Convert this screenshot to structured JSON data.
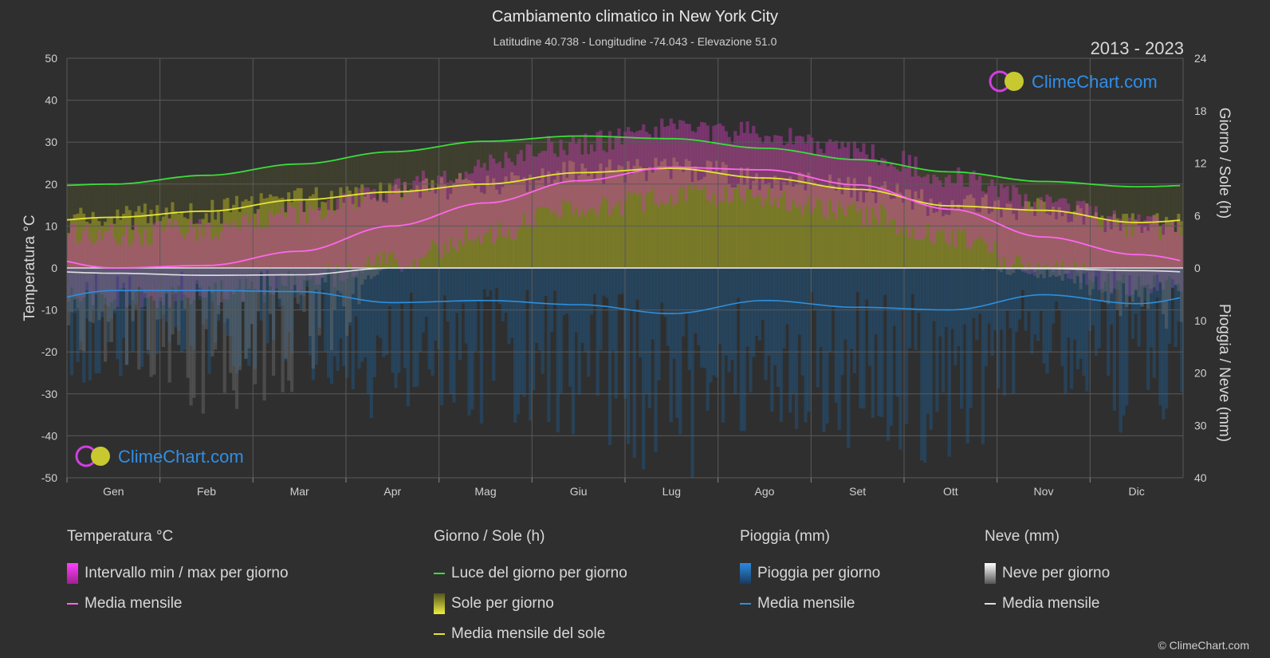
{
  "header": {
    "title": "Cambiamento climatico in New York City",
    "subtitle": "Latitudine 40.738 - Longitudine -74.043 - Elevazione 51.0",
    "years": "2013 - 2023",
    "watermark": "ClimeChart.com",
    "copyright": "© ClimeChart.com"
  },
  "colors": {
    "background": "#2f2f2f",
    "daylight": "#3cdc3c",
    "sun_mean": "#e6e632",
    "sun_fill": "#8c8c28",
    "temp_mean": "#ff66ee",
    "temp_range": "#c83cb4",
    "rain_mean": "#2e8fdc",
    "rain_bar": "#1e5a8c",
    "snow_mean": "#e0e0e0",
    "snow_bar": "#6e6e6e",
    "watermark_text": "#2f8fe8"
  },
  "chart_data": {
    "type": "line",
    "categories": [
      "Gen",
      "Feb",
      "Mar",
      "Apr",
      "Mag",
      "Giu",
      "Lug",
      "Ago",
      "Set",
      "Ott",
      "Nov",
      "Dic"
    ],
    "left_axis": {
      "label": "Temperatura °C",
      "range": [
        -50,
        50
      ],
      "ticks": [
        50,
        40,
        30,
        20,
        10,
        0,
        -10,
        -20,
        -30,
        -40,
        -50
      ]
    },
    "right_axis_top": {
      "label": "Giorno / Sole (h)",
      "range": [
        0,
        24
      ],
      "ticks": [
        24,
        18,
        12,
        6,
        0
      ]
    },
    "right_axis_bottom": {
      "label": "Pioggia / Neve (mm)",
      "range": [
        0,
        40
      ],
      "ticks": [
        0,
        10,
        20,
        30,
        40
      ]
    },
    "series": [
      {
        "name": "Luce del giorno per giorno",
        "axis": "hours",
        "values": [
          9.6,
          10.6,
          11.9,
          13.3,
          14.5,
          15.1,
          14.8,
          13.7,
          12.4,
          11.0,
          9.9,
          9.3
        ]
      },
      {
        "name": "Media mensile del sole",
        "axis": "hours",
        "values": [
          5.8,
          6.5,
          7.8,
          8.7,
          9.6,
          10.9,
          11.4,
          10.3,
          9.0,
          7.1,
          6.6,
          5.2
        ]
      },
      {
        "name": "Media mensile",
        "group": "temperature",
        "axis": "temp",
        "values": [
          0.0,
          0.6,
          4.0,
          10.0,
          15.5,
          20.8,
          24.0,
          23.4,
          19.8,
          14.0,
          7.4,
          3.2
        ]
      },
      {
        "name": "Media mensile",
        "group": "rain",
        "axis": "precip",
        "values": [
          4.3,
          4.3,
          4.5,
          6.6,
          6.2,
          7.0,
          8.7,
          6.2,
          7.5,
          8.0,
          5.1,
          6.8
        ]
      },
      {
        "name": "Media mensile",
        "group": "snow",
        "axis": "precip",
        "values": [
          1.0,
          1.4,
          1.3,
          0.0,
          0.0,
          0.0,
          0.0,
          0.0,
          0.0,
          0.0,
          0.1,
          0.5
        ]
      }
    ],
    "temp_range_approx": {
      "min": [
        -4,
        -3,
        0,
        5,
        11,
        17,
        20,
        20,
        16,
        10,
        3,
        -1
      ],
      "max": [
        5,
        6,
        10,
        16,
        22,
        27,
        30,
        29,
        25,
        19,
        12,
        7
      ]
    },
    "grid": true
  },
  "legend": {
    "groups": [
      {
        "title": "Temperatura °C",
        "items": [
          {
            "label": "Intervallo min / max per giorno",
            "kind": "box",
            "color": "#e030d0"
          },
          {
            "label": "Media mensile",
            "kind": "line",
            "color": "#ff66ee"
          }
        ]
      },
      {
        "title": "Giorno / Sole (h)",
        "items": [
          {
            "label": "Luce del giorno per giorno",
            "kind": "line",
            "color": "#3cdc3c"
          },
          {
            "label": "Sole per giorno",
            "kind": "box",
            "color": "#d8d830"
          },
          {
            "label": "Media mensile del sole",
            "kind": "line",
            "color": "#e6e632"
          }
        ]
      },
      {
        "title": "Pioggia (mm)",
        "items": [
          {
            "label": "Pioggia per giorno",
            "kind": "box",
            "color": "#2a8ae0"
          },
          {
            "label": "Media mensile",
            "kind": "line",
            "color": "#2e8fdc"
          }
        ]
      },
      {
        "title": "Neve (mm)",
        "items": [
          {
            "label": "Neve per giorno",
            "kind": "box",
            "color": "#d8d8d8"
          },
          {
            "label": "Media mensile",
            "kind": "line",
            "color": "#e0e0e0"
          }
        ]
      }
    ]
  }
}
